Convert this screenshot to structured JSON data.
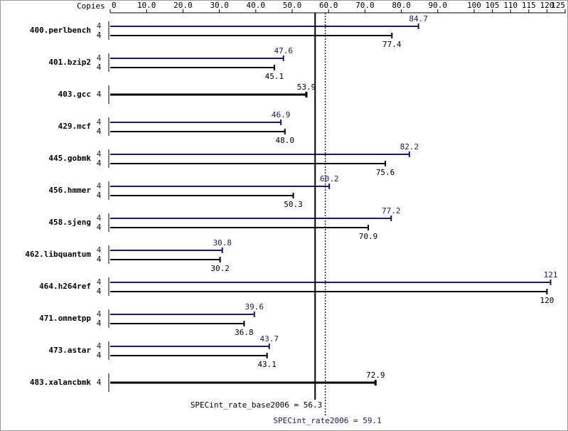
{
  "chart_data": {
    "type": "bar",
    "copies_label": "Copies",
    "categories": [
      "400.perlbench",
      "401.bzip2",
      "403.gcc",
      "429.mcf",
      "445.gobmk",
      "456.hmmer",
      "458.sjeng",
      "462.libquantum",
      "464.h264ref",
      "471.omnetpp",
      "473.astar",
      "483.xalancbmk"
    ],
    "series": [
      {
        "color": "#191970",
        "copies": [
          4,
          4,
          null,
          4,
          4,
          4,
          4,
          4,
          4,
          4,
          4,
          null
        ],
        "values": [
          84.7,
          47.6,
          null,
          46.9,
          82.2,
          60.2,
          77.2,
          30.8,
          121,
          39.6,
          43.7,
          null
        ],
        "value_labels": [
          "84.7",
          "47.6",
          null,
          "46.9",
          "82.2",
          "60.2",
          "77.2",
          "30.8",
          "121",
          "39.6",
          "43.7",
          null
        ]
      },
      {
        "color": "#000000",
        "copies": [
          4,
          4,
          4,
          4,
          4,
          4,
          4,
          4,
          4,
          4,
          4,
          4
        ],
        "values": [
          77.4,
          45.1,
          53.9,
          48.0,
          75.6,
          50.3,
          70.9,
          30.2,
          120,
          36.8,
          43.1,
          72.9
        ],
        "value_labels": [
          "77.4",
          "45.1",
          "53.9",
          "48.0",
          "75.6",
          "50.3",
          "70.9",
          "30.2",
          "120",
          "36.8",
          "43.1",
          "72.9"
        ]
      }
    ],
    "xlim": [
      0,
      125
    ],
    "xticks": [
      0,
      {
        "value": 10,
        "label": "10.0"
      },
      {
        "value": 20,
        "label": "20.0"
      },
      {
        "value": 30,
        "label": "30.0"
      },
      {
        "value": 40,
        "label": "40.0"
      },
      {
        "value": 50,
        "label": "50.0"
      },
      {
        "value": 60,
        "label": "60.0"
      },
      {
        "value": 70,
        "label": "70.0"
      },
      {
        "value": 80,
        "label": "80.0"
      },
      {
        "value": 90,
        "label": "90.0"
      },
      100,
      105,
      110,
      115,
      120,
      125
    ],
    "reference_lines": [
      {
        "label": "SPECint_rate_base2006 = 56.3",
        "value": 56.3,
        "color": "#000000",
        "style": "solid"
      },
      {
        "label": "SPECint_rate2006 = 59.1",
        "value": 59.1,
        "color": "#191970",
        "style": "dotted"
      }
    ]
  }
}
